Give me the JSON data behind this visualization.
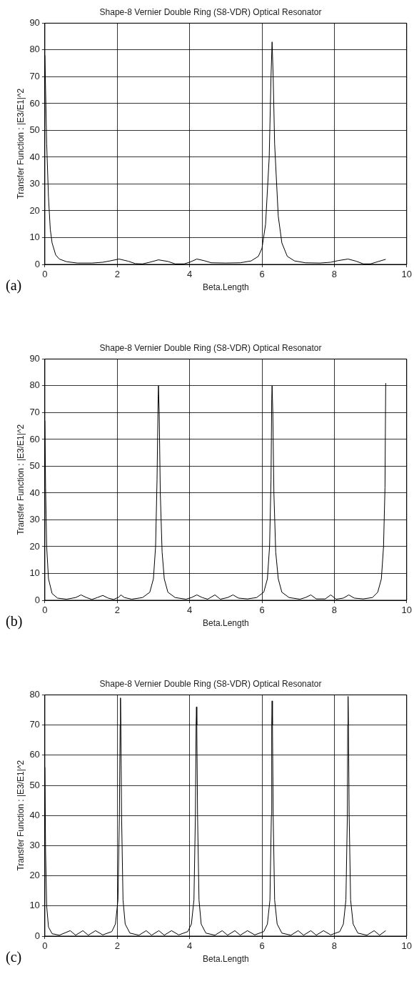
{
  "chart_data": [
    {
      "type": "line",
      "title": "Shape-8 Vernier Double Ring (S8-VDR) Optical Resonator",
      "xlabel": "Beta.Length",
      "ylabel": "Transfer Function : |E3/E1|^2",
      "annotations": [
        "(a)"
      ],
      "x": [
        0,
        0.02,
        0.05,
        0.1,
        0.15,
        0.2,
        0.3,
        0.4,
        0.6,
        0.9,
        1.3,
        1.6,
        1.8,
        2.05,
        2.3,
        2.5,
        2.7,
        2.9,
        3.14,
        3.4,
        3.6,
        3.85,
        4.0,
        4.2,
        4.4,
        4.6,
        5.0,
        5.4,
        5.7,
        5.9,
        6.0,
        6.1,
        6.2,
        6.25,
        6.28,
        6.31,
        6.35,
        6.45,
        6.55,
        6.7,
        6.9,
        7.2,
        7.6,
        7.9,
        8.1,
        8.38,
        8.6,
        8.8,
        9.0,
        9.2,
        9.42
      ],
      "series": [
        {
          "color": "#000000",
          "values": [
            78,
            65,
            45,
            25,
            13,
            8,
            3.5,
            2,
            1,
            0.5,
            0.5,
            0.8,
            1.3,
            2,
            1.2,
            0.3,
            0.2,
            0.8,
            1.7,
            1.1,
            0.2,
            0.2,
            0.8,
            2,
            1.4,
            0.6,
            0.5,
            0.6,
            1.3,
            3,
            6,
            15,
            40,
            70,
            83,
            70,
            45,
            18,
            8,
            3,
            1.3,
            0.6,
            0.5,
            0.8,
            1.4,
            2,
            1.2,
            0.2,
            0.2,
            1,
            1.9
          ]
        }
      ],
      "xlim": [
        0,
        10
      ],
      "xticks": [
        0,
        2,
        4,
        6,
        8,
        10
      ],
      "ylim": [
        0,
        90
      ],
      "yticks": [
        0,
        10,
        20,
        30,
        40,
        50,
        60,
        70,
        80,
        90
      ],
      "grid": true,
      "legend": false,
      "marker": "none"
    },
    {
      "type": "line",
      "title": "Shape-8 Vernier Double Ring (S8-VDR) Optical Resonator",
      "xlabel": "Beta.Length",
      "ylabel": "Transfer Function : |E3/E1|^2",
      "annotations": [
        "(b)"
      ],
      "x": [
        0,
        0.02,
        0.05,
        0.1,
        0.2,
        0.35,
        0.6,
        0.85,
        1.0,
        1.15,
        1.3,
        1.45,
        1.6,
        1.75,
        1.9,
        2.05,
        2.1,
        2.2,
        2.4,
        2.7,
        2.9,
        3.0,
        3.06,
        3.1,
        3.13,
        3.14,
        3.16,
        3.19,
        3.24,
        3.3,
        3.4,
        3.6,
        3.9,
        4.05,
        4.2,
        4.35,
        4.5,
        4.7,
        4.85,
        5.05,
        5.2,
        5.35,
        5.6,
        5.85,
        6.05,
        6.15,
        6.21,
        6.25,
        6.27,
        6.28,
        6.3,
        6.33,
        6.38,
        6.45,
        6.55,
        6.75,
        7.05,
        7.2,
        7.35,
        7.5,
        7.75,
        7.9,
        8.05,
        8.25,
        8.4,
        8.55,
        8.8,
        9.05,
        9.2,
        9.3,
        9.36,
        9.4,
        9.42
      ],
      "series": [
        {
          "color": "#000000",
          "values": [
            67,
            42,
            20,
            8,
            2.5,
            0.8,
            0.4,
            1,
            2,
            1,
            0.3,
            1,
            1.8,
            0.8,
            0.3,
            1.2,
            2,
            1,
            0.4,
            1,
            3,
            8,
            20,
            45,
            75,
            80,
            70,
            40,
            18,
            8,
            3,
            1,
            0.4,
            1,
            2,
            1,
            0.4,
            2,
            0.4,
            1,
            2,
            0.8,
            0.5,
            1,
            3,
            8,
            20,
            45,
            75,
            80,
            70,
            40,
            18,
            8,
            3,
            1,
            0.4,
            1,
            2,
            0.5,
            0.5,
            2,
            0.4,
            0.8,
            2,
            0.8,
            0.5,
            1,
            3,
            8,
            20,
            42,
            81
          ]
        }
      ],
      "xlim": [
        0,
        10
      ],
      "xticks": [
        0,
        2,
        4,
        6,
        8,
        10
      ],
      "ylim": [
        0,
        90
      ],
      "yticks": [
        0,
        10,
        20,
        30,
        40,
        50,
        60,
        70,
        80,
        90
      ],
      "grid": true,
      "legend": false,
      "marker": "none"
    },
    {
      "type": "line",
      "title": "Shape-8 Vernier Double Ring (S8-VDR) Optical Resonator",
      "xlabel": "Beta.Length",
      "ylabel": "Transfer Function : |E3/E1|^2",
      "annotations": [
        "(c)"
      ],
      "x": [
        0,
        0.02,
        0.05,
        0.1,
        0.2,
        0.4,
        0.7,
        0.85,
        1.05,
        1.2,
        1.4,
        1.6,
        1.85,
        1.95,
        2.02,
        2.06,
        2.08,
        2.09,
        2.1,
        2.12,
        2.16,
        2.22,
        2.35,
        2.6,
        2.8,
        2.95,
        3.15,
        3.3,
        3.5,
        3.7,
        3.95,
        4.05,
        4.12,
        4.16,
        4.18,
        4.19,
        4.2,
        4.22,
        4.26,
        4.32,
        4.45,
        4.7,
        4.9,
        5.05,
        5.25,
        5.4,
        5.6,
        5.8,
        6.05,
        6.15,
        6.22,
        6.26,
        6.27,
        6.28,
        6.29,
        6.31,
        6.35,
        6.42,
        6.55,
        6.8,
        7.0,
        7.15,
        7.35,
        7.5,
        7.7,
        7.9,
        8.15,
        8.25,
        8.32,
        8.36,
        8.37,
        8.38,
        8.39,
        8.41,
        8.45,
        8.52,
        8.65,
        8.9,
        9.1,
        9.25,
        9.42
      ],
      "series": [
        {
          "color": "#000000",
          "values": [
            56,
            28,
            10,
            3,
            0.8,
            0.3,
            1.8,
            0.3,
            1.8,
            0.3,
            1.8,
            0.4,
            1.5,
            4,
            12,
            40,
            70,
            79,
            70,
            40,
            12,
            4,
            1,
            0.3,
            1.8,
            0.3,
            1.8,
            0.3,
            1.8,
            0.4,
            1.5,
            4,
            12,
            40,
            70,
            76,
            70,
            40,
            12,
            4,
            1,
            0.3,
            1.8,
            0.3,
            1.8,
            0.3,
            1.8,
            0.4,
            1.5,
            4,
            12,
            40,
            70,
            78,
            70,
            40,
            12,
            4,
            1,
            0.3,
            1.8,
            0.3,
            1.8,
            0.3,
            1.8,
            0.4,
            1.5,
            4,
            12,
            40,
            70,
            79.5,
            70,
            40,
            12,
            4,
            1,
            0.3,
            1.8,
            0.3,
            1.8
          ]
        }
      ],
      "xlim": [
        0,
        10
      ],
      "xticks": [
        0,
        2,
        4,
        6,
        8,
        10
      ],
      "ylim": [
        0,
        80
      ],
      "yticks": [
        0,
        10,
        20,
        30,
        40,
        50,
        60,
        70,
        80
      ],
      "grid": true,
      "legend": false,
      "marker": "none"
    }
  ]
}
